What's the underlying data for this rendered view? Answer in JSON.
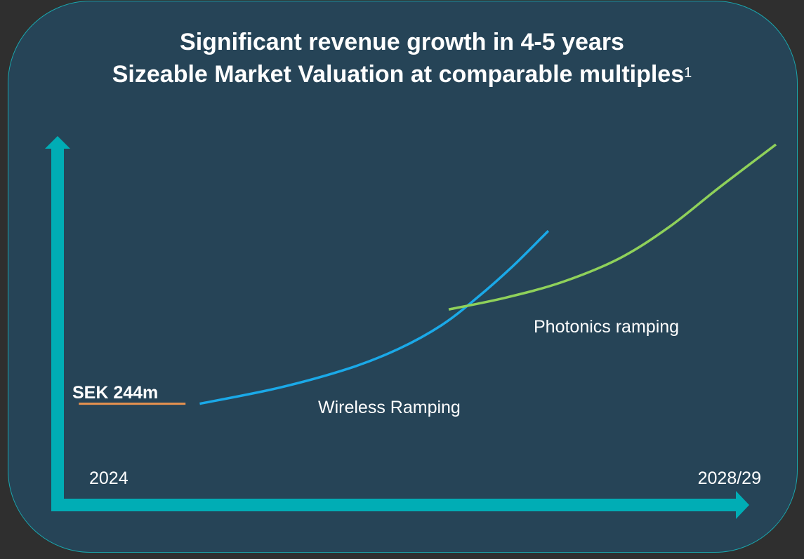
{
  "title": {
    "line1": "Significant revenue growth in 4-5 years",
    "line2": "Sizeable Market Valuation at comparable multiples",
    "footnote_marker": "1"
  },
  "colors": {
    "background": "#264457",
    "outer": "#2f2f2f",
    "axis": "#00adb5",
    "wireless": "#1aa9e8",
    "photonics": "#8fd15a",
    "baseline": "#e8924f",
    "text": "#ffffff"
  },
  "chart_data": {
    "type": "line",
    "title": "Significant revenue growth in 4-5 years / Sizeable Market Valuation at comparable multiples",
    "x_start_label": "2024",
    "x_end_label": "2028/29",
    "xlim": [
      0,
      100
    ],
    "ylim": [
      0,
      100
    ],
    "baseline": {
      "name": "SEK 244m",
      "x": [
        2,
        17
      ],
      "y": [
        24,
        24
      ]
    },
    "series": [
      {
        "name": "Wireless Ramping",
        "x": [
          19,
          30,
          40,
          47,
          53,
          58,
          63,
          68
        ],
        "y": [
          24,
          28,
          33,
          38,
          44,
          51,
          59,
          68
        ]
      },
      {
        "name": "Photonics ramping",
        "x": [
          54,
          62,
          70,
          78,
          85,
          92,
          100
        ],
        "y": [
          48,
          51,
          55,
          61,
          69,
          79,
          90
        ]
      }
    ],
    "annotations": {
      "wireless_label": "Wireless Ramping",
      "photonics_label": "Photonics ramping",
      "start_value_label": "SEK 244m"
    }
  }
}
